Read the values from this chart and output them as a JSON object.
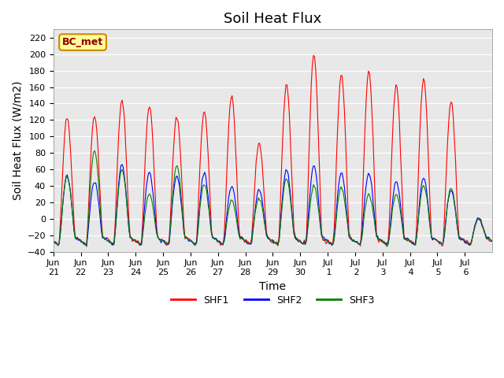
{
  "title": "Soil Heat Flux",
  "ylabel": "Soil Heat Flux (W/m2)",
  "xlabel": "Time",
  "ylim": [
    -40,
    230
  ],
  "yticks": [
    -40,
    -20,
    0,
    20,
    40,
    60,
    80,
    100,
    120,
    140,
    160,
    180,
    200,
    220
  ],
  "xtick_labels": [
    "Jun\n21",
    "Jun\n22",
    "Jun\n23",
    "Jun\n24",
    "Jun\n25",
    "Jun\n26",
    "Jun\n27",
    "Jun\n28",
    "Jun\n29",
    "Jun\n30",
    "Jul\n 1",
    "Jul\n 2",
    "Jul\n 3",
    "Jul\n 4",
    "Jul\n 5",
    "Jul\n 6"
  ],
  "annotation_text": "BC_met",
  "annotation_facecolor": "#FFFF99",
  "annotation_edgecolor": "#CC8800",
  "series_colors": [
    "red",
    "blue",
    "green"
  ],
  "series_labels": [
    "SHF1",
    "SHF2",
    "SHF3"
  ],
  "bg_color": "#E8E8E8",
  "fig_color": "#FFFFFF",
  "title_fontsize": 13,
  "axis_label_fontsize": 10,
  "tick_fontsize": 8,
  "legend_fontsize": 9
}
